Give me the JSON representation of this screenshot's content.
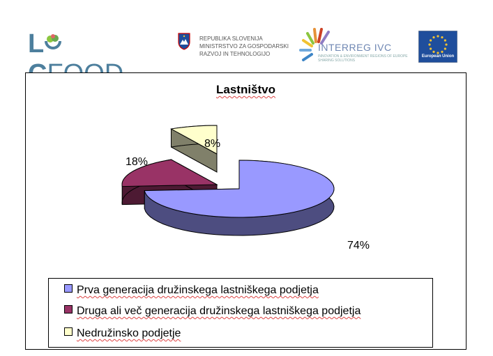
{
  "header": {
    "locfood_logo": {
      "l": "L",
      "o_icon": "lettuce-icon",
      "c": "C",
      "food": "FOOD"
    },
    "gov": {
      "lines": [
        "REPUBLIKA SLOVENIJA",
        "MINISTRSTVO ZA GOSPODARSKI",
        "RAZVOJ IN TEHNOLOGIJO"
      ]
    },
    "interreg": {
      "title": "INTERREG IVC",
      "subtitle": "INNOVATION & ENVIRONMENT REGIONS OF EUROPE SHARING SOLUTIONS"
    },
    "eu": {
      "label": "European Union"
    }
  },
  "chart_data": {
    "type": "pie",
    "title": "Lastništvo",
    "categories": [
      "Prva generacija družinskega lastniškega podjetja",
      "Druga ali več generacija družinskega lastniškega podjetja",
      "Nedružinsko podjetje"
    ],
    "values": [
      74,
      18,
      8
    ],
    "data_labels": [
      "74%",
      "18%",
      "8%"
    ],
    "colors": [
      "#9999ff",
      "#993366",
      "#ffffcc"
    ],
    "side_colors": [
      "#4d4d80",
      "#4d1a33",
      "#80806a"
    ],
    "three_d": true,
    "exploded": true,
    "legend_position": "bottom"
  }
}
